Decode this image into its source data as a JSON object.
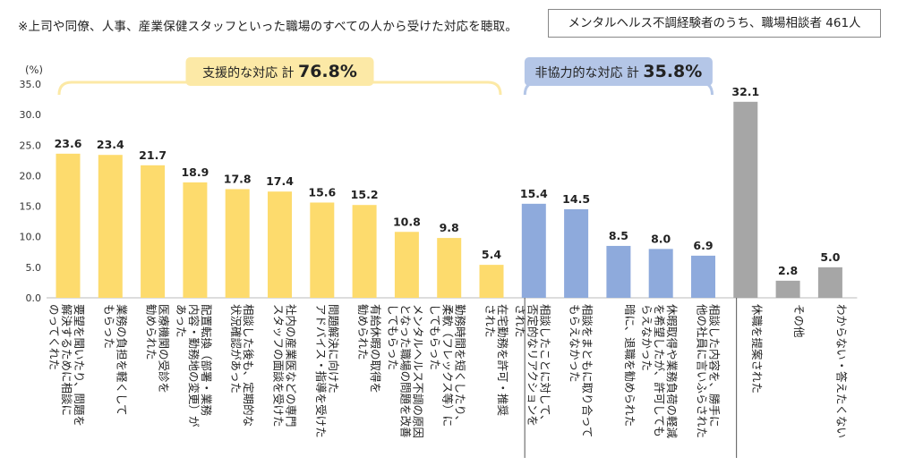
{
  "note": "※上司や同僚、人事、産業保健スタッフといった職場のすべての人から受けた対応を聴取。",
  "sample": "メンタルヘルス不調経験者のうち、職場相談者 461人",
  "chart_data": {
    "type": "bar",
    "ylabel": "(%)",
    "ylim": [
      0,
      35
    ],
    "yticks": [
      "0.0",
      "5.0",
      "10.0",
      "15.0",
      "20.0",
      "25.0",
      "30.0",
      "35.0"
    ],
    "colors": {
      "supportive": "#fddb6d",
      "uncooperative": "#8eaadc",
      "other": "#a6a6a6",
      "supportive_bracket": "#fce9a6",
      "uncooperative_bracket": "#b4c6e7"
    },
    "groups": [
      {
        "key": "supportive",
        "label": "支援的な対応 計",
        "value": "76.8%",
        "start": 0,
        "end": 10
      },
      {
        "key": "uncooperative",
        "label": "非協力的な対応 計",
        "value": "35.8%",
        "start": 11,
        "end": 15
      }
    ],
    "bars": [
      {
        "label": [
          "要望を聞いたり、問題を",
          "解決するために相談に",
          "のってくれた"
        ],
        "value": 23.6,
        "display": "23.6",
        "group": "supportive"
      },
      {
        "label": [
          "業務の負担を軽くして",
          "もらった"
        ],
        "value": 23.4,
        "display": "23.4",
        "group": "supportive"
      },
      {
        "label": [
          "医療機関の受診を",
          "勧められた"
        ],
        "value": 21.7,
        "display": "21.7",
        "group": "supportive"
      },
      {
        "label": [
          "配置転換（部署・業務",
          "内容・勤務地の変更）が",
          "あった"
        ],
        "value": 18.9,
        "display": "18.9",
        "group": "supportive"
      },
      {
        "label": [
          "相談した後も、定期的な",
          "状況確認があった"
        ],
        "value": 17.8,
        "display": "17.8",
        "group": "supportive"
      },
      {
        "label": [
          "社内の産業医などの専門",
          "スタッフの面談を受けた"
        ],
        "value": 17.4,
        "display": "17.4",
        "group": "supportive"
      },
      {
        "label": [
          "問題解決に向けた",
          "アドバイス・指導を受けた"
        ],
        "value": 15.6,
        "display": "15.6",
        "group": "supportive"
      },
      {
        "label": [
          "有給休暇の取得を",
          "勧められた"
        ],
        "value": 15.2,
        "display": "15.2",
        "group": "supportive"
      },
      {
        "label": [
          "メンタルヘルス不調の原因",
          "となった職場の問題を改善",
          "してもらった"
        ],
        "value": 10.8,
        "display": "10.8",
        "group": "supportive"
      },
      {
        "label": [
          "勤務時間を短くしたり、",
          "柔軟（フレックス等）に",
          "してもらった"
        ],
        "value": 9.8,
        "display": "9.8",
        "group": "supportive"
      },
      {
        "label": [
          "在宅勤務を許可・推奨",
          "された"
        ],
        "value": 5.4,
        "display": "5.4",
        "group": "supportive"
      },
      {
        "label": [
          "相談したことに対して、",
          "否定的なリアクションを",
          "された"
        ],
        "value": 15.4,
        "display": "15.4",
        "group": "uncooperative"
      },
      {
        "label": [
          "相談をまともに取り合って",
          "もらえなかった"
        ],
        "value": 14.5,
        "display": "14.5",
        "group": "uncooperative"
      },
      {
        "label": [
          "暗に、退職を勧められた"
        ],
        "value": 8.5,
        "display": "8.5",
        "group": "uncooperative"
      },
      {
        "label": [
          "休暇取得や業務負荷の軽減",
          "を希望したが、許可しても",
          "らえなかった"
        ],
        "value": 8.0,
        "display": "8.0",
        "group": "uncooperative"
      },
      {
        "label": [
          "相談した内容を、勝手に",
          "他の社員に言いふらされた"
        ],
        "value": 6.9,
        "display": "6.9",
        "group": "uncooperative"
      },
      {
        "label": [
          "休職を提案された"
        ],
        "value": 32.1,
        "display": "32.1",
        "group": "other"
      },
      {
        "label": [
          "その他"
        ],
        "value": 2.8,
        "display": "2.8",
        "group": "other"
      },
      {
        "label": [
          "わからない・答えたくない"
        ],
        "value": 5.0,
        "display": "5.0",
        "group": "other"
      }
    ]
  }
}
